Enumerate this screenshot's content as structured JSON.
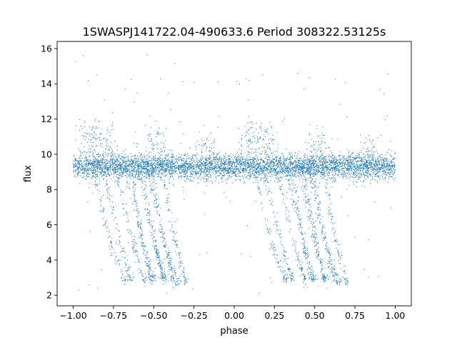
{
  "chart_data": {
    "type": "scatter",
    "title": "1SWASPJ141722.04-490633.6 Period 308322.53125s",
    "xlabel": "phase",
    "ylabel": "flux",
    "xlim": [
      -1.1,
      1.1
    ],
    "ylim": [
      1.4,
      16.4
    ],
    "grid": false,
    "legend": "none",
    "x_ticks": [
      -1.0,
      -0.75,
      -0.5,
      -0.25,
      0.0,
      0.25,
      0.5,
      0.75,
      1.0
    ],
    "x_tick_labels": [
      "−1.00",
      "−0.75",
      "−0.50",
      "−0.25",
      "0.00",
      "0.25",
      "0.50",
      "0.75",
      "1.00"
    ],
    "y_ticks": [
      2,
      4,
      6,
      8,
      10,
      12,
      14,
      16
    ],
    "y_tick_labels": [
      "2",
      "4",
      "6",
      "8",
      "10",
      "12",
      "14",
      "16"
    ],
    "series": [
      {
        "color": "#1f77b4",
        "marker_size": 0.6,
        "period": 1.0,
        "baseline_flux": 9.3,
        "baseline_scatter": 0.35,
        "n_baseline_points_per_cycle": 2600,
        "dip_tracks": [
          {
            "x": [
              -0.88,
              -0.77,
              -0.68
            ],
            "y": [
              9.3,
              5.0,
              2.8
            ]
          },
          {
            "x": [
              -0.82,
              -0.72,
              -0.64
            ],
            "y": [
              9.3,
              5.5,
              2.8
            ]
          },
          {
            "x": [
              -0.74,
              -0.63,
              -0.56
            ],
            "y": [
              9.3,
              5.0,
              2.8
            ]
          },
          {
            "x": [
              -0.68,
              -0.58,
              -0.5
            ],
            "y": [
              9.3,
              5.5,
              2.8
            ]
          },
          {
            "x": [
              -0.6,
              -0.5,
              -0.43
            ],
            "y": [
              9.3,
              5.0,
              2.8
            ]
          },
          {
            "x": [
              -0.54,
              -0.45,
              -0.38
            ],
            "y": [
              9.3,
              5.5,
              2.8
            ]
          },
          {
            "x": [
              -0.3,
              -0.38,
              -0.45
            ],
            "y": [
              2.6,
              5.5,
              9.3
            ]
          },
          {
            "x": [
              -0.35,
              -0.43,
              -0.52
            ],
            "y": [
              2.6,
              5.0,
              9.3
            ]
          },
          {
            "x": [
              -0.44,
              -0.5,
              -0.58
            ],
            "y": [
              2.9,
              5.5,
              9.3
            ]
          },
          {
            "x": [
              -0.52,
              -0.57,
              -0.64
            ],
            "y": [
              2.9,
              5.0,
              9.3
            ]
          }
        ],
        "n_points_per_track": 90,
        "bright_clusters": [
          {
            "x": -0.9,
            "y": 11.0
          },
          {
            "x": -0.8,
            "y": 10.8
          },
          {
            "x": -0.48,
            "y": 10.4
          },
          {
            "x": -0.16,
            "y": 10.0
          },
          {
            "x": 0.1,
            "y": 11.0
          },
          {
            "x": 0.2,
            "y": 10.8
          },
          {
            "x": 0.52,
            "y": 10.4
          },
          {
            "x": 0.84,
            "y": 10.0
          }
        ],
        "n_points_per_cluster": 60,
        "n_outliers": 140,
        "outlier_y_range": [
          2.0,
          15.8
        ]
      }
    ]
  }
}
